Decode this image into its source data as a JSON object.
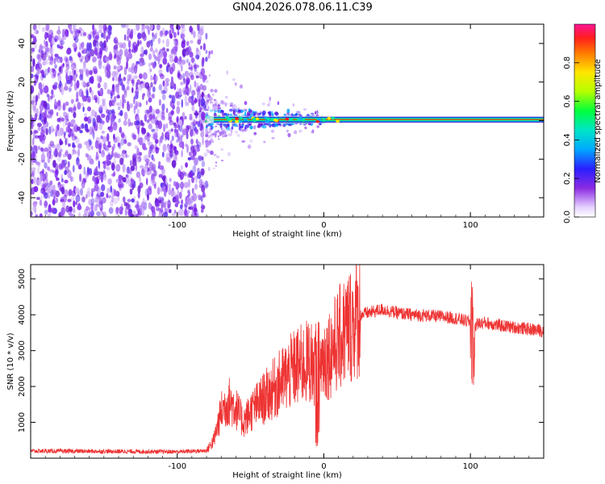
{
  "title": "GN04.2026.078.06.11.C39",
  "chart_data": [
    {
      "type": "heatmap",
      "name": "spectrogram",
      "xlabel": "Height of straight line (km)",
      "ylabel": "Frequency (Hz)",
      "xlim": [
        -200,
        150
      ],
      "ylim": [
        -50,
        50
      ],
      "x_ticks": [
        -100,
        0,
        100
      ],
      "y_ticks": [
        -40,
        -20,
        0,
        20,
        40
      ],
      "colorbar": {
        "label": "Normalized spectral amplitude",
        "range": [
          0.0,
          1.0
        ],
        "ticks": [
          "0.0",
          "0.2",
          "0.4",
          "0.6",
          "0.8"
        ]
      },
      "features": {
        "noise_region_x": [
          -200,
          -80
        ],
        "signal_line_frequency": 0.5,
        "signal_start_x": -80
      }
    },
    {
      "type": "line",
      "name": "snr",
      "xlabel": "Height of straight line (km)",
      "ylabel": "SNR (10 * v/v)",
      "xlim": [
        -200,
        150
      ],
      "ylim": [
        0,
        5400
      ],
      "x_ticks": [
        -100,
        0,
        100
      ],
      "y_ticks": [
        1000,
        2000,
        3000,
        4000,
        5000
      ],
      "series": [
        {
          "name": "SNR",
          "color": "#ee3333",
          "x": [
            -200,
            -150,
            -100,
            -80,
            -75,
            -70,
            -65,
            -60,
            -55,
            -50,
            -45,
            -40,
            -35,
            -30,
            -25,
            -20,
            -15,
            -10,
            -5,
            0,
            5,
            10,
            15,
            20,
            25,
            30,
            35,
            40,
            45,
            50,
            60,
            70,
            80,
            90,
            95,
            100,
            102,
            105,
            110,
            120,
            130,
            140,
            150
          ],
          "values": [
            200,
            190,
            180,
            210,
            500,
            1300,
            1600,
            1400,
            1000,
            1300,
            1500,
            1700,
            1900,
            2100,
            2300,
            2500,
            2600,
            2700,
            2600,
            2800,
            3000,
            3300,
            3600,
            3800,
            4000,
            4050,
            4100,
            4150,
            4100,
            4050,
            4000,
            3980,
            3950,
            3900,
            3850,
            3800,
            3700,
            3750,
            3780,
            3700,
            3650,
            3600,
            3550
          ]
        }
      ]
    }
  ]
}
